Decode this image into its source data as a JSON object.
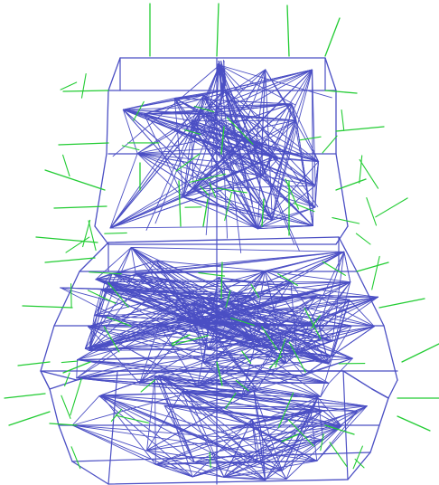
{
  "scene": {
    "subject": "chair-mesh",
    "background": "#ffffff",
    "wire_color": "#4b4fc4",
    "normal_color": "#22cc33"
  }
}
